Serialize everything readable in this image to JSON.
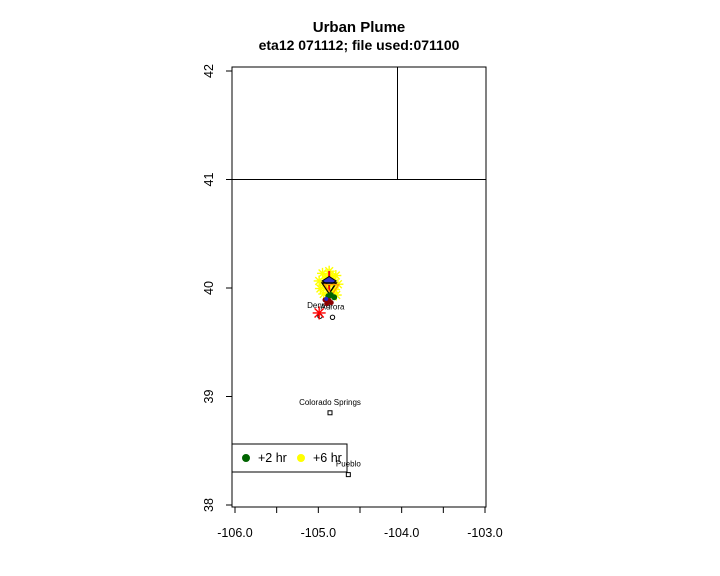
{
  "header": {
    "title": "Urban Plume",
    "subtitle": "eta12 071112; file used:071100"
  },
  "chart_data": {
    "type": "scatter",
    "title": "Urban Plume",
    "subtitle": "eta12 071112; file used:071100",
    "xlabel": "",
    "ylabel": "",
    "xlim": [
      -106.04,
      -102.99
    ],
    "ylim": [
      37.98,
      42.04
    ],
    "grid": false,
    "x_ticks": [
      {
        "value": -106.0,
        "label": "-106.0"
      },
      {
        "value": -105.5,
        "label": ""
      },
      {
        "value": -105.0,
        "label": "-105.0"
      },
      {
        "value": -104.5,
        "label": ""
      },
      {
        "value": -104.0,
        "label": "-104.0"
      },
      {
        "value": -103.5,
        "label": ""
      },
      {
        "value": -103.0,
        "label": "-103.0"
      }
    ],
    "y_ticks": [
      {
        "value": 38,
        "label": "38"
      },
      {
        "value": 39,
        "label": "39"
      },
      {
        "value": 40,
        "label": "40"
      },
      {
        "value": 41,
        "label": "41"
      },
      {
        "value": 42,
        "label": "42"
      }
    ],
    "map_lines": [
      {
        "name": "state-border-41N",
        "points": [
          [
            -106.04,
            41.0
          ],
          [
            -102.99,
            41.0
          ]
        ]
      },
      {
        "name": "state-border-104.05W",
        "points": [
          [
            -104.05,
            42.04
          ],
          [
            -104.05,
            41.0
          ]
        ]
      }
    ],
    "cities": [
      {
        "name": "Denver",
        "lon": -104.98,
        "lat": 39.74,
        "marker": "circle-open"
      },
      {
        "name": "Aurora",
        "lon": -104.83,
        "lat": 39.73,
        "marker": "circle-open"
      },
      {
        "name": "Colorado Springs",
        "lon": -104.86,
        "lat": 38.85,
        "marker": "square-open"
      },
      {
        "name": "Pueblo",
        "lon": -104.64,
        "lat": 38.28,
        "marker": "square-open"
      }
    ],
    "series": [
      {
        "name": "plume-6hr-points",
        "marker": "asterisk8",
        "color": "#FFFF00",
        "size": 5.5,
        "points": [
          [
            -104.95,
            40.135
          ],
          [
            -104.87,
            40.155
          ],
          [
            -104.79,
            40.115
          ],
          [
            -104.99,
            40.065
          ],
          [
            -104.91,
            40.085
          ],
          [
            -104.83,
            40.065
          ],
          [
            -104.765,
            40.035
          ],
          [
            -104.975,
            39.995
          ],
          [
            -104.885,
            40.015
          ],
          [
            -104.805,
            39.985
          ],
          [
            -104.935,
            39.945
          ],
          [
            -104.855,
            39.955
          ],
          [
            -104.785,
            39.935
          ],
          [
            -104.875,
            40.065
          ],
          [
            -104.915,
            40.025
          ],
          [
            -104.835,
            40.105
          ],
          [
            -104.89,
            40.1
          ]
        ]
      },
      {
        "name": "plume-cross",
        "marker": "plus",
        "color": "#FF0000",
        "size": 11,
        "points": [
          [
            -104.87,
            40.055
          ]
        ]
      },
      {
        "name": "centroid-diamond",
        "marker": "diamond",
        "color": "#3333CC",
        "size": 7,
        "points": [
          [
            -104.87,
            40.065
          ]
        ]
      },
      {
        "name": "centroid-triangle-black",
        "marker": "triangle-down-open",
        "color": "#000000",
        "size": 7,
        "points": [
          [
            -104.87,
            40.0
          ]
        ]
      },
      {
        "name": "centroid-triangle-orange",
        "marker": "triangle-down-open",
        "color": "#FFA500",
        "size": 7,
        "points": [
          [
            -104.84,
            39.985
          ]
        ]
      },
      {
        "name": "plume-2hr-points",
        "marker": "dot",
        "color": "#006400",
        "size": 2.5,
        "points": [
          [
            -104.85,
            39.935
          ],
          [
            -104.81,
            39.915
          ],
          [
            -104.88,
            39.925
          ]
        ]
      },
      {
        "name": "plume-dark-red-points",
        "marker": "dot",
        "color": "#8B0000",
        "size": 2,
        "points": [
          [
            -104.92,
            39.89
          ],
          [
            -104.87,
            39.885
          ],
          [
            -104.845,
            39.865
          ],
          [
            -104.9,
            39.855
          ]
        ]
      },
      {
        "name": "plume-blue-point",
        "marker": "dot",
        "color": "#2222CC",
        "size": 1.5,
        "points": [
          [
            -104.905,
            39.9
          ]
        ]
      },
      {
        "name": "source-asterisk",
        "marker": "star8",
        "color": "#FF0000",
        "size": 6.5,
        "points": [
          [
            -104.99,
            39.77
          ]
        ]
      }
    ],
    "legend": {
      "position": "bottom-left",
      "items": [
        {
          "label": "+2 hr",
          "color": "#006400",
          "marker": "dot"
        },
        {
          "label": "+6 hr",
          "color": "#FFFF00",
          "marker": "dot"
        }
      ]
    }
  }
}
